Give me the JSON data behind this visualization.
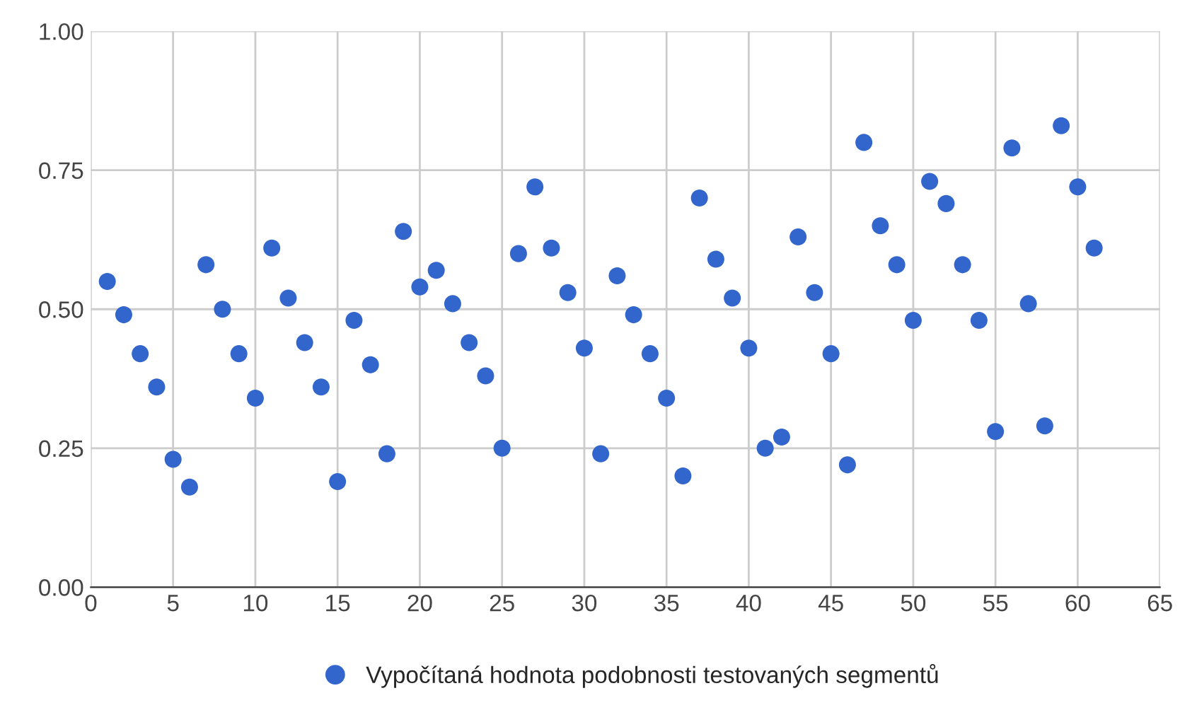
{
  "chart_data": {
    "type": "scatter",
    "xlim": [
      0,
      65
    ],
    "xticks": [
      0,
      5,
      10,
      15,
      20,
      25,
      30,
      35,
      40,
      45,
      50,
      55,
      60,
      65
    ],
    "ylim": [
      0,
      1
    ],
    "yticks": [
      {
        "value": 0,
        "label": "0.00"
      },
      {
        "value": 0.25,
        "label": "0.25"
      },
      {
        "value": 0.5,
        "label": "0.50"
      },
      {
        "value": 0.75,
        "label": "0.75"
      },
      {
        "value": 1,
        "label": "1.00"
      }
    ],
    "grid": true,
    "legend": "bottom",
    "marker": "circle",
    "series": [
      {
        "name": "Vypočítaná hodnota podobnosti testovaných segmentů",
        "color": "#3366cc",
        "x": [
          1,
          2,
          3,
          4,
          5,
          6,
          7,
          8,
          9,
          10,
          11,
          12,
          13,
          14,
          15,
          16,
          17,
          18,
          19,
          20,
          21,
          22,
          23,
          24,
          25,
          26,
          27,
          28,
          29,
          30,
          31,
          32,
          33,
          34,
          35,
          36,
          37,
          38,
          39,
          40,
          41,
          42,
          43,
          44,
          45,
          46,
          47,
          48,
          49,
          50,
          51,
          52,
          53,
          54,
          55,
          56,
          57,
          58,
          59,
          60,
          61
        ],
        "values": [
          0.55,
          0.49,
          0.42,
          0.36,
          0.23,
          0.18,
          0.58,
          0.5,
          0.42,
          0.34,
          0.61,
          0.52,
          0.44,
          0.36,
          0.19,
          0.48,
          0.4,
          0.24,
          0.64,
          0.54,
          0.57,
          0.51,
          0.44,
          0.38,
          0.25,
          0.6,
          0.72,
          0.61,
          0.53,
          0.43,
          0.24,
          0.56,
          0.49,
          0.42,
          0.34,
          0.2,
          0.7,
          0.59,
          0.52,
          0.43,
          0.25,
          0.27,
          0.63,
          0.53,
          0.42,
          0.22,
          0.8,
          0.65,
          0.58,
          0.48,
          0.73,
          0.69,
          0.58,
          0.48,
          0.28,
          0.79,
          0.51,
          0.29,
          0.83,
          0.72,
          0.61
        ]
      }
    ]
  }
}
